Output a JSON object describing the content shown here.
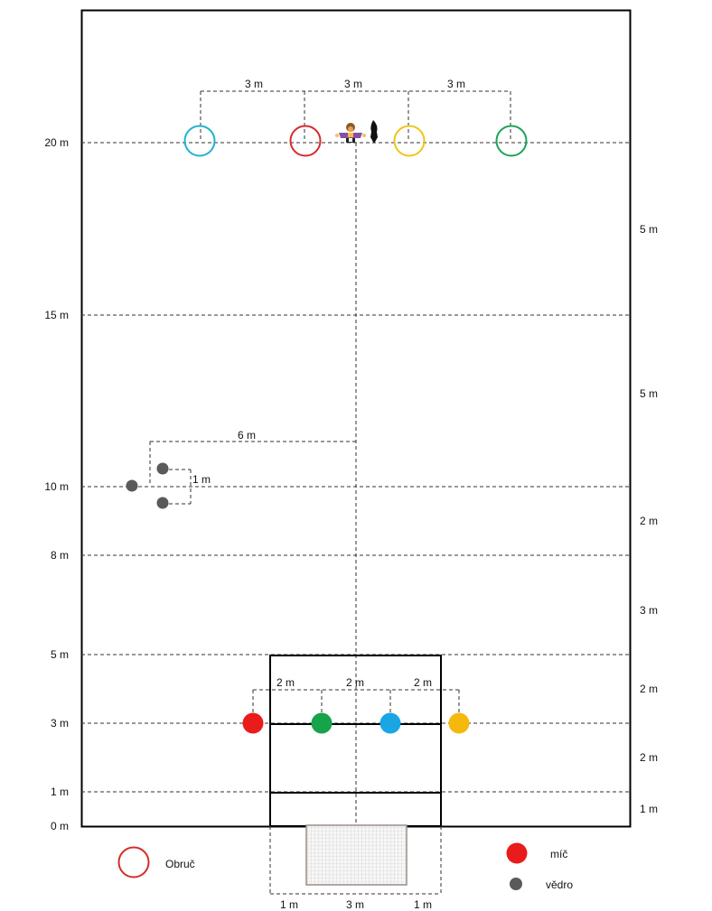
{
  "y_axis_labels": [
    "20 m",
    "15 m",
    "10 m",
    "8 m",
    "5 m",
    "3 m",
    "1 m",
    "0 m"
  ],
  "right_segment_labels": [
    "5 m",
    "5 m",
    "2 m",
    "3 m",
    "2 m",
    "2 m",
    "1 m"
  ],
  "top_spacing_labels": [
    "3 m",
    "3 m",
    "3 m"
  ],
  "cone_spacing_labels": [
    "2 m",
    "2 m",
    "2 m"
  ],
  "bucket_offset_label": "6 m",
  "bucket_gap_label": "1 m",
  "goal_labels": [
    "1 m",
    "3 m",
    "1 m"
  ],
  "hoops": [
    {
      "color": "#1fb3cc"
    },
    {
      "color": "#d62b2b"
    },
    {
      "color": "#efc418"
    },
    {
      "color": "#1aa35a"
    }
  ],
  "balls": [
    {
      "color": "#ea1b1b"
    },
    {
      "color": "#16a34a"
    },
    {
      "color": "#19a6e3"
    },
    {
      "color": "#f5b90d"
    }
  ],
  "bucket_color": "#5a5a5a",
  "legend": {
    "hoop_label": "Obruč",
    "ball_label": "míč",
    "bucket_label": "vědro",
    "hoop_color": "#d62b2b",
    "ball_color": "#ea1b1b"
  }
}
